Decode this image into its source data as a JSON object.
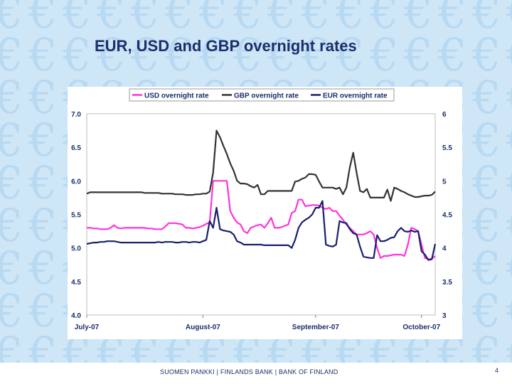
{
  "slide": {
    "title": "EUR, USD and GBP overnight rates",
    "footer": "SUOMEN PANKKI | FINLANDS BANK | BANK OF FINLAND",
    "page_number": "4",
    "background_pattern_symbol": "€"
  },
  "chart_data": {
    "type": "line",
    "x": [
      0,
      1,
      2,
      3,
      4,
      5,
      6,
      7,
      8,
      9,
      10,
      11,
      12,
      13,
      14,
      15,
      16,
      17,
      18,
      19,
      20,
      21,
      22,
      23,
      24,
      25,
      26,
      27,
      28,
      29,
      30,
      31,
      32,
      33,
      34,
      35,
      36,
      37,
      38,
      39,
      40,
      41,
      42,
      43,
      44,
      45,
      46,
      47,
      48,
      49,
      50,
      51,
      52,
      53,
      54,
      55,
      56,
      57,
      58,
      59,
      60,
      61,
      62,
      63,
      64,
      65,
      66,
      67,
      68,
      69,
      70,
      71,
      72,
      73,
      74,
      75,
      76,
      77,
      78,
      79,
      80,
      81,
      82,
      83,
      84,
      85,
      86,
      87,
      88,
      89,
      90,
      91,
      92,
      93,
      94,
      95,
      96,
      97,
      98,
      99,
      100,
      101,
      102
    ],
    "x_tick_labels": [
      {
        "label": "July-07",
        "at": 0
      },
      {
        "label": "August-07",
        "at": 34
      },
      {
        "label": "September-07",
        "at": 67
      },
      {
        "label": "October-07",
        "at": 98
      }
    ],
    "xlim": [
      0,
      102
    ],
    "y_left": {
      "ylim": [
        4.0,
        7.0
      ],
      "ticks": [
        "4.0",
        "4.5",
        "5.0",
        "5.5",
        "6.0",
        "6.5",
        "7.0"
      ]
    },
    "y_right": {
      "ylim": [
        3,
        6
      ],
      "ticks": [
        "3",
        "3.5",
        "4",
        "4.5",
        "5",
        "5.5",
        "6"
      ]
    },
    "legend_position": "top",
    "grid": false,
    "series": [
      {
        "name": "USD overnight rate",
        "color": "#ff33dd",
        "axis": "left",
        "values": [
          5.3,
          5.3,
          5.29,
          5.29,
          5.28,
          5.28,
          5.28,
          5.3,
          5.34,
          5.3,
          5.29,
          5.3,
          5.3,
          5.3,
          5.3,
          5.3,
          5.3,
          5.3,
          5.29,
          5.29,
          5.28,
          5.28,
          5.28,
          5.32,
          5.37,
          5.37,
          5.37,
          5.36,
          5.35,
          5.3,
          5.3,
          5.29,
          5.3,
          5.31,
          5.33,
          5.36,
          5.38,
          6.0,
          6.0,
          6.0,
          6.0,
          6.0,
          5.55,
          5.45,
          5.38,
          5.35,
          5.25,
          5.22,
          5.3,
          5.32,
          5.34,
          5.35,
          5.3,
          5.37,
          5.45,
          5.3,
          5.3,
          5.31,
          5.33,
          5.35,
          5.52,
          5.55,
          5.72,
          5.72,
          5.62,
          5.63,
          5.64,
          5.64,
          5.63,
          5.6,
          5.58,
          5.6,
          5.55,
          5.55,
          5.48,
          5.42,
          5.35,
          5.3,
          5.25,
          5.2,
          5.2,
          5.2,
          5.22,
          5.25,
          5.2,
          5.0,
          4.85,
          4.88,
          4.88,
          4.89,
          4.9,
          4.9,
          4.9,
          4.88,
          5.05,
          5.3,
          5.28,
          5.25,
          5.05,
          4.85,
          4.83,
          4.84,
          4.88
        ]
      },
      {
        "name": "GBP overnight rate",
        "color": "#333333",
        "axis": "right",
        "values": [
          4.81,
          4.83,
          4.83,
          4.83,
          4.83,
          4.83,
          4.83,
          4.83,
          4.83,
          4.83,
          4.83,
          4.83,
          4.83,
          4.83,
          4.83,
          4.83,
          4.83,
          4.82,
          4.82,
          4.82,
          4.82,
          4.82,
          4.81,
          4.81,
          4.81,
          4.81,
          4.8,
          4.8,
          4.8,
          4.79,
          4.79,
          4.79,
          4.8,
          4.8,
          4.81,
          4.81,
          4.84,
          5.12,
          5.75,
          5.65,
          5.52,
          5.4,
          5.26,
          5.15,
          5.0,
          4.96,
          4.96,
          4.95,
          4.92,
          4.9,
          4.94,
          4.8,
          4.8,
          4.85,
          4.85,
          4.85,
          4.85,
          4.85,
          4.85,
          4.85,
          4.85,
          4.99,
          5.0,
          5.03,
          5.05,
          5.1,
          5.1,
          5.09,
          4.99,
          4.9,
          4.9,
          4.9,
          4.9,
          4.88,
          4.9,
          4.8,
          4.9,
          5.2,
          5.42,
          5.12,
          4.85,
          4.83,
          4.88,
          4.75,
          4.75,
          4.75,
          4.75,
          4.75,
          4.87,
          4.7,
          4.9,
          4.88,
          4.85,
          4.83,
          4.8,
          4.78,
          4.76,
          4.76,
          4.77,
          4.78,
          4.78,
          4.79,
          4.84
        ]
      },
      {
        "name": "EUR overnight rate",
        "color": "#1a1f6e",
        "axis": "left",
        "values": [
          5.06,
          5.07,
          5.08,
          5.08,
          5.09,
          5.09,
          5.1,
          5.1,
          5.1,
          5.09,
          5.08,
          5.08,
          5.08,
          5.08,
          5.08,
          5.08,
          5.08,
          5.08,
          5.08,
          5.08,
          5.08,
          5.09,
          5.08,
          5.09,
          5.09,
          5.09,
          5.08,
          5.08,
          5.09,
          5.09,
          5.08,
          5.09,
          5.09,
          5.08,
          5.1,
          5.12,
          5.4,
          5.3,
          5.6,
          5.28,
          5.26,
          5.25,
          5.24,
          5.2,
          5.1,
          5.08,
          5.05,
          5.05,
          5.05,
          5.05,
          5.05,
          5.05,
          5.04,
          5.04,
          5.04,
          5.04,
          5.04,
          5.04,
          5.04,
          5.04,
          5.0,
          5.12,
          5.3,
          5.38,
          5.42,
          5.45,
          5.5,
          5.6,
          5.6,
          5.7,
          5.05,
          5.03,
          5.02,
          5.05,
          5.4,
          5.38,
          5.37,
          5.28,
          5.22,
          5.2,
          5.02,
          4.87,
          4.86,
          4.85,
          4.85,
          5.19,
          5.1,
          5.1,
          5.12,
          5.15,
          5.16,
          5.25,
          5.3,
          5.25,
          5.24,
          5.26,
          5.24,
          5.25,
          4.95,
          4.9,
          4.82,
          4.83,
          5.06
        ]
      }
    ]
  }
}
